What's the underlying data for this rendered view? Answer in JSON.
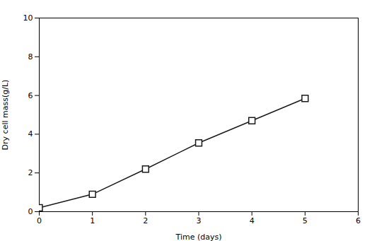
{
  "chart_data": {
    "type": "line",
    "x": [
      0,
      1,
      2,
      3,
      4,
      5
    ],
    "values": [
      0.2,
      0.9,
      2.2,
      3.55,
      4.7,
      5.85
    ],
    "xlabel": "Time (days)",
    "ylabel": "Dry cell mass(g/L)",
    "xlim": [
      0,
      6
    ],
    "ylim": [
      0,
      10
    ],
    "xticks": [
      0,
      1,
      2,
      3,
      4,
      5,
      6
    ],
    "yticks": [
      0,
      2,
      4,
      6,
      8,
      10
    ],
    "color": "#1a1a1a",
    "marker": "square",
    "grid": false
  }
}
